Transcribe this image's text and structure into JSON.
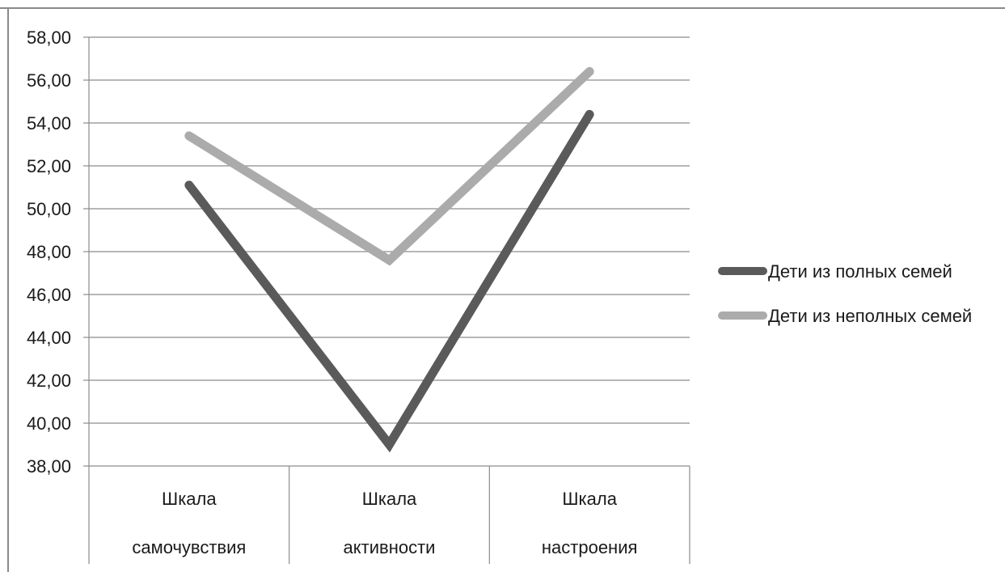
{
  "chart_data": {
    "type": "line",
    "categories": [
      [
        "Шкала",
        "самочувствия"
      ],
      [
        "Шкала",
        "активности"
      ],
      [
        "Шкала",
        "настроения"
      ]
    ],
    "series": [
      {
        "name": "Дети из полных семей",
        "values": [
          51.1,
          39.0,
          54.4
        ],
        "color": "#5a5a5a"
      },
      {
        "name": "Дети из неполных семей",
        "values": [
          53.4,
          47.6,
          56.4
        ],
        "color": "#ababab"
      }
    ],
    "y_ticks": [
      "38,00",
      "40,00",
      "42,00",
      "44,00",
      "46,00",
      "48,00",
      "50,00",
      "52,00",
      "54,00",
      "56,00",
      "58,00"
    ],
    "ylim": [
      38,
      58
    ],
    "grid": true,
    "legend_position": "right",
    "title": "",
    "xlabel": "",
    "ylabel": ""
  }
}
